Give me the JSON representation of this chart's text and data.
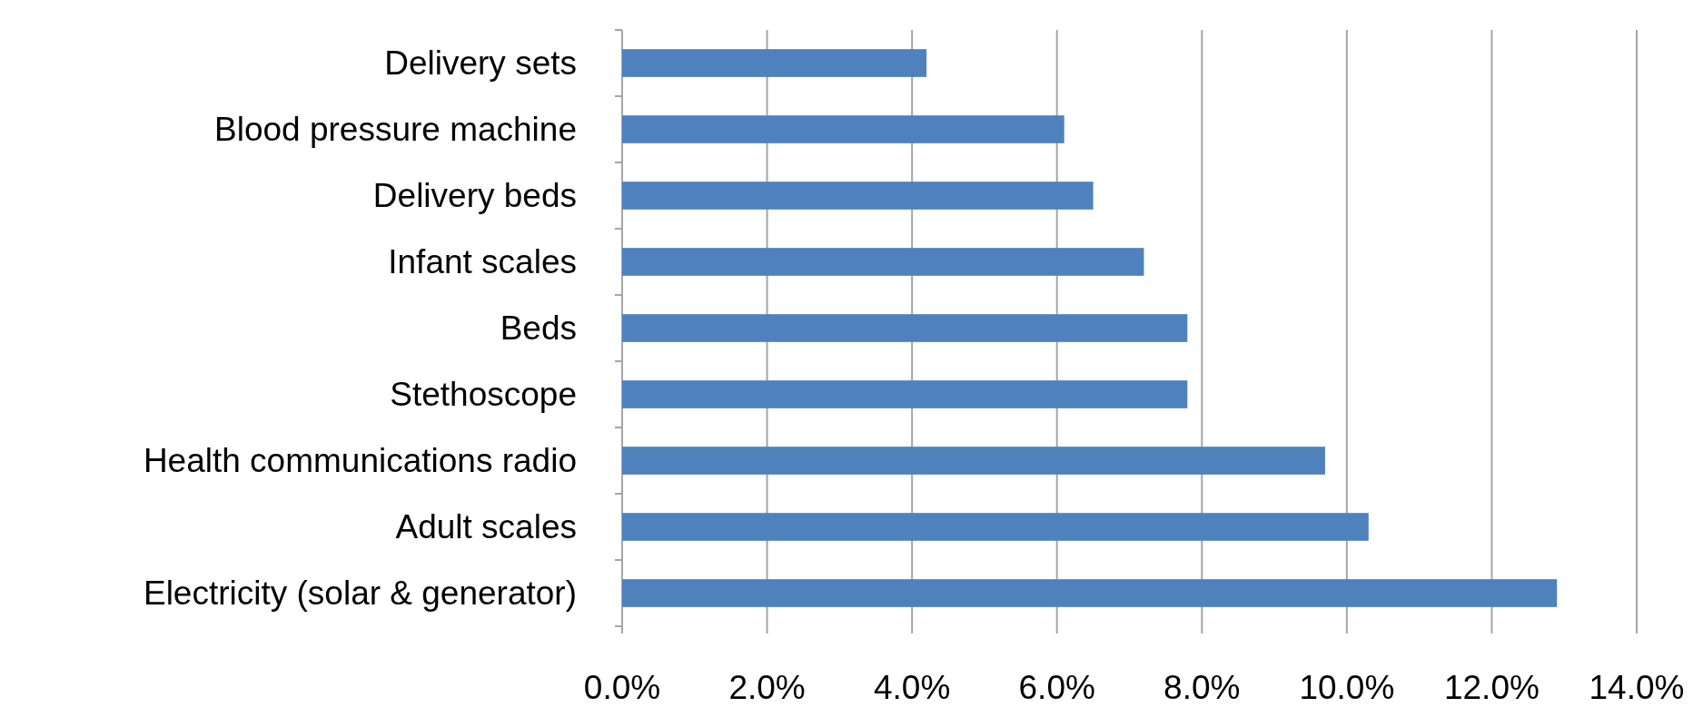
{
  "chart_data": {
    "type": "bar",
    "orientation": "horizontal",
    "categories": [
      "Delivery sets",
      "Blood pressure machine",
      "Delivery beds",
      "Infant scales",
      "Beds",
      "Stethoscope",
      "Health communications radio",
      "Adult scales",
      "Electricity (solar & generator)"
    ],
    "values": [
      4.2,
      6.1,
      6.5,
      7.2,
      7.8,
      7.8,
      9.7,
      10.3,
      12.9
    ],
    "color": "#4f81bd",
    "xlim": [
      0,
      14
    ],
    "xticks": [
      {
        "value": 0,
        "label": "0.0%"
      },
      {
        "value": 2,
        "label": "2.0%"
      },
      {
        "value": 4,
        "label": "4.0%"
      },
      {
        "value": 6,
        "label": "6.0%"
      },
      {
        "value": 8,
        "label": "8.0%"
      },
      {
        "value": 10,
        "label": "10.0%"
      },
      {
        "value": 12,
        "label": "12.0%"
      },
      {
        "value": 14,
        "label": "14.0%"
      }
    ],
    "grid": "x"
  }
}
